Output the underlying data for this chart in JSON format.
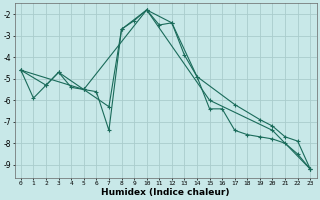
{
  "title": "",
  "xlabel": "Humidex (Indice chaleur)",
  "background_color": "#c8e8e8",
  "grid_color": "#aacccc",
  "line_color": "#1a6b5a",
  "marker": "+",
  "xlim": [
    -0.5,
    23.5
  ],
  "ylim": [
    -9.6,
    -1.5
  ],
  "yticks": [
    -9,
    -8,
    -7,
    -6,
    -5,
    -4,
    -3,
    -2
  ],
  "xticks": [
    0,
    1,
    2,
    3,
    4,
    5,
    6,
    7,
    8,
    9,
    10,
    11,
    12,
    13,
    14,
    15,
    16,
    17,
    18,
    19,
    20,
    21,
    22,
    23
  ],
  "series1": [
    [
      0,
      -4.6
    ],
    [
      1,
      -5.9
    ],
    [
      2,
      -5.3
    ],
    [
      3,
      -4.7
    ],
    [
      4,
      -5.4
    ],
    [
      5,
      -5.5
    ],
    [
      6,
      -5.6
    ],
    [
      7,
      -7.4
    ],
    [
      8,
      -2.7
    ],
    [
      9,
      -2.3
    ],
    [
      10,
      -1.8
    ],
    [
      11,
      -2.5
    ],
    [
      12,
      -2.4
    ],
    [
      13,
      -3.9
    ],
    [
      14,
      -4.9
    ],
    [
      15,
      -6.4
    ],
    [
      16,
      -6.4
    ],
    [
      17,
      -7.4
    ],
    [
      18,
      -7.6
    ],
    [
      19,
      -7.7
    ],
    [
      20,
      -7.8
    ],
    [
      21,
      -8.0
    ],
    [
      22,
      -8.5
    ],
    [
      23,
      -9.2
    ]
  ],
  "series2": [
    [
      0,
      -4.6
    ],
    [
      2,
      -5.3
    ],
    [
      3,
      -4.7
    ],
    [
      5,
      -5.5
    ],
    [
      7,
      -6.3
    ],
    [
      8,
      -2.7
    ],
    [
      10,
      -1.8
    ],
    [
      12,
      -2.4
    ],
    [
      14,
      -4.9
    ],
    [
      17,
      -6.2
    ],
    [
      19,
      -6.9
    ],
    [
      20,
      -7.2
    ],
    [
      21,
      -7.7
    ],
    [
      22,
      -7.9
    ],
    [
      23,
      -9.2
    ]
  ],
  "series3": [
    [
      0,
      -4.6
    ],
    [
      5,
      -5.5
    ],
    [
      10,
      -1.8
    ],
    [
      15,
      -6.0
    ],
    [
      20,
      -7.4
    ],
    [
      23,
      -9.2
    ]
  ]
}
